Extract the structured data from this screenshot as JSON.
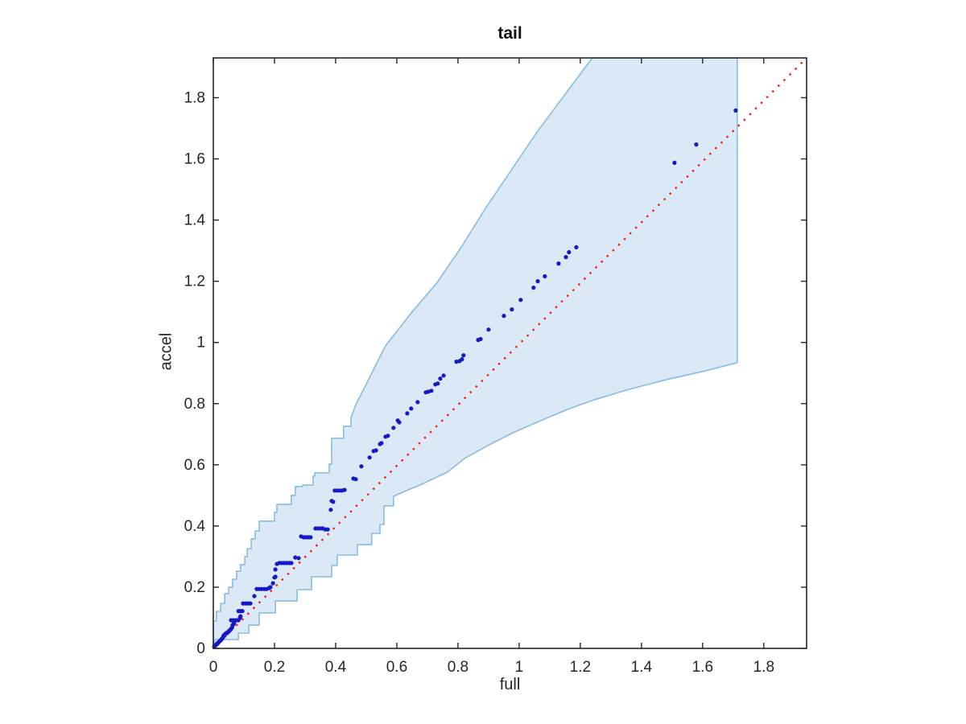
{
  "chart_data": {
    "type": "scatter",
    "title": "tail",
    "xlabel": "full",
    "ylabel": "accel",
    "xlim": [
      0,
      1.94
    ],
    "ylim": [
      0,
      1.93
    ],
    "grid": false,
    "legend": null,
    "xticks": {
      "values": [
        0,
        0.2,
        0.4,
        0.6,
        0.8,
        1,
        1.2,
        1.4,
        1.6,
        1.8
      ],
      "labels": [
        "0",
        "0.2",
        "0.4",
        "0.6",
        "0.8",
        "1",
        "1.2",
        "1.4",
        "1.6",
        "1.8"
      ]
    },
    "yticks": {
      "values": [
        0,
        0.2,
        0.4,
        0.6,
        0.8,
        1,
        1.2,
        1.4,
        1.6,
        1.8
      ],
      "labels": [
        "0",
        "0.2",
        "0.4",
        "0.6",
        "0.8",
        "1",
        "1.2",
        "1.4",
        "1.6",
        "1.8"
      ]
    },
    "colors": {
      "axis": "#262626",
      "marker": "#1519c6",
      "refline": "#f91a0c",
      "band_fill": "#dbe9f6",
      "band_edge": "#86bde0",
      "title": "#111111"
    },
    "marker": {
      "shape": "circle",
      "radius": 2.6
    },
    "refline": {
      "style": "dotted",
      "from": [
        0,
        0
      ],
      "to": [
        1.94,
        1.93
      ]
    },
    "band_polygon": [
      [
        0,
        0.005
      ],
      [
        0,
        0.09
      ],
      [
        0.01,
        0.09
      ],
      [
        0.01,
        0.121
      ],
      [
        0.024,
        0.121
      ],
      [
        0.024,
        0.147
      ],
      [
        0.037,
        0.147
      ],
      [
        0.037,
        0.179
      ],
      [
        0.05,
        0.179
      ],
      [
        0.05,
        0.2
      ],
      [
        0.063,
        0.2
      ],
      [
        0.063,
        0.226
      ],
      [
        0.076,
        0.226
      ],
      [
        0.076,
        0.253
      ],
      [
        0.089,
        0.253
      ],
      [
        0.089,
        0.274
      ],
      [
        0.103,
        0.274
      ],
      [
        0.103,
        0.3
      ],
      [
        0.111,
        0.3
      ],
      [
        0.111,
        0.326
      ],
      [
        0.124,
        0.326
      ],
      [
        0.124,
        0.358
      ],
      [
        0.137,
        0.358
      ],
      [
        0.137,
        0.384
      ],
      [
        0.15,
        0.384
      ],
      [
        0.15,
        0.416
      ],
      [
        0.2,
        0.416
      ],
      [
        0.2,
        0.445
      ],
      [
        0.208,
        0.445
      ],
      [
        0.208,
        0.471
      ],
      [
        0.255,
        0.471
      ],
      [
        0.255,
        0.5
      ],
      [
        0.268,
        0.5
      ],
      [
        0.268,
        0.529
      ],
      [
        0.292,
        0.529
      ],
      [
        0.292,
        0.534
      ],
      [
        0.326,
        0.534
      ],
      [
        0.326,
        0.563
      ],
      [
        0.332,
        0.563
      ],
      [
        0.332,
        0.574
      ],
      [
        0.379,
        0.574
      ],
      [
        0.379,
        0.603
      ],
      [
        0.387,
        0.603
      ],
      [
        0.387,
        0.687
      ],
      [
        0.426,
        0.687
      ],
      [
        0.426,
        0.726
      ],
      [
        0.45,
        0.726
      ],
      [
        0.45,
        0.753
      ],
      [
        0.466,
        0.797
      ],
      [
        0.484,
        0.832
      ],
      [
        0.563,
        0.989
      ],
      [
        0.65,
        1.1
      ],
      [
        0.729,
        1.192
      ],
      [
        0.81,
        1.31
      ],
      [
        0.889,
        1.437
      ],
      [
        1.06,
        1.69
      ],
      [
        1.239,
        1.93
      ],
      [
        1.713,
        1.93
      ],
      [
        1.713,
        0.934
      ],
      [
        1.6,
        0.905
      ],
      [
        1.484,
        0.879
      ],
      [
        1.36,
        0.847
      ],
      [
        1.247,
        0.813
      ],
      [
        1.16,
        0.782
      ],
      [
        1.071,
        0.745
      ],
      [
        0.98,
        0.705
      ],
      [
        0.897,
        0.663
      ],
      [
        0.82,
        0.62
      ],
      [
        0.766,
        0.576
      ],
      [
        0.72,
        0.555
      ],
      [
        0.676,
        0.534
      ],
      [
        0.63,
        0.515
      ],
      [
        0.589,
        0.497
      ],
      [
        0.589,
        0.466
      ],
      [
        0.558,
        0.466
      ],
      [
        0.558,
        0.405
      ],
      [
        0.545,
        0.405
      ],
      [
        0.545,
        0.376
      ],
      [
        0.518,
        0.376
      ],
      [
        0.518,
        0.339
      ],
      [
        0.471,
        0.339
      ],
      [
        0.471,
        0.305
      ],
      [
        0.405,
        0.305
      ],
      [
        0.405,
        0.271
      ],
      [
        0.387,
        0.271
      ],
      [
        0.387,
        0.234
      ],
      [
        0.321,
        0.234
      ],
      [
        0.321,
        0.192
      ],
      [
        0.274,
        0.192
      ],
      [
        0.274,
        0.155
      ],
      [
        0.203,
        0.155
      ],
      [
        0.203,
        0.116
      ],
      [
        0.15,
        0.116
      ],
      [
        0.15,
        0.076
      ],
      [
        0.116,
        0.076
      ],
      [
        0.116,
        0.05
      ],
      [
        0.082,
        0.05
      ],
      [
        0.082,
        0.029
      ],
      [
        0.005,
        0.029
      ],
      [
        0.005,
        0.008
      ]
    ],
    "points": [
      [
        0.003,
        0.005
      ],
      [
        0.005,
        0.008
      ],
      [
        0.008,
        0.011
      ],
      [
        0.011,
        0.013
      ],
      [
        0.013,
        0.016
      ],
      [
        0.016,
        0.018
      ],
      [
        0.018,
        0.021
      ],
      [
        0.021,
        0.024
      ],
      [
        0.024,
        0.026
      ],
      [
        0.026,
        0.029
      ],
      [
        0.029,
        0.032
      ],
      [
        0.032,
        0.037
      ],
      [
        0.034,
        0.042
      ],
      [
        0.037,
        0.045
      ],
      [
        0.039,
        0.047
      ],
      [
        0.042,
        0.05
      ],
      [
        0.045,
        0.05
      ],
      [
        0.047,
        0.053
      ],
      [
        0.05,
        0.055
      ],
      [
        0.053,
        0.058
      ],
      [
        0.055,
        0.061
      ],
      [
        0.058,
        0.063
      ],
      [
        0.061,
        0.068
      ],
      [
        0.063,
        0.076
      ],
      [
        0.066,
        0.079
      ],
      [
        0.068,
        0.084
      ],
      [
        0.058,
        0.092
      ],
      [
        0.066,
        0.092
      ],
      [
        0.074,
        0.092
      ],
      [
        0.082,
        0.092
      ],
      [
        0.087,
        0.1
      ],
      [
        0.089,
        0.105
      ],
      [
        0.082,
        0.122
      ],
      [
        0.089,
        0.122
      ],
      [
        0.095,
        0.122
      ],
      [
        0.097,
        0.147
      ],
      [
        0.105,
        0.147
      ],
      [
        0.113,
        0.147
      ],
      [
        0.121,
        0.147
      ],
      [
        0.134,
        0.171
      ],
      [
        0.142,
        0.194
      ],
      [
        0.15,
        0.194
      ],
      [
        0.158,
        0.194
      ],
      [
        0.166,
        0.194
      ],
      [
        0.174,
        0.194
      ],
      [
        0.182,
        0.197
      ],
      [
        0.187,
        0.2
      ],
      [
        0.195,
        0.213
      ],
      [
        0.2,
        0.232
      ],
      [
        0.203,
        0.234
      ],
      [
        0.203,
        0.258
      ],
      [
        0.208,
        0.276
      ],
      [
        0.216,
        0.279
      ],
      [
        0.224,
        0.279
      ],
      [
        0.232,
        0.279
      ],
      [
        0.24,
        0.279
      ],
      [
        0.248,
        0.279
      ],
      [
        0.255,
        0.279
      ],
      [
        0.268,
        0.297
      ],
      [
        0.279,
        0.295
      ],
      [
        0.287,
        0.366
      ],
      [
        0.295,
        0.363
      ],
      [
        0.303,
        0.363
      ],
      [
        0.311,
        0.363
      ],
      [
        0.318,
        0.363
      ],
      [
        0.334,
        0.392
      ],
      [
        0.342,
        0.392
      ],
      [
        0.35,
        0.392
      ],
      [
        0.358,
        0.392
      ],
      [
        0.366,
        0.389
      ],
      [
        0.374,
        0.389
      ],
      [
        0.384,
        0.453
      ],
      [
        0.387,
        0.482
      ],
      [
        0.392,
        0.479
      ],
      [
        0.397,
        0.516
      ],
      [
        0.405,
        0.516
      ],
      [
        0.413,
        0.516
      ],
      [
        0.421,
        0.516
      ],
      [
        0.429,
        0.518
      ],
      [
        0.458,
        0.555
      ],
      [
        0.466,
        0.553
      ],
      [
        0.484,
        0.595
      ],
      [
        0.511,
        0.624
      ],
      [
        0.524,
        0.645
      ],
      [
        0.532,
        0.647
      ],
      [
        0.545,
        0.668
      ],
      [
        0.55,
        0.671
      ],
      [
        0.563,
        0.692
      ],
      [
        0.571,
        0.695
      ],
      [
        0.589,
        0.721
      ],
      [
        0.603,
        0.745
      ],
      [
        0.608,
        0.739
      ],
      [
        0.634,
        0.768
      ],
      [
        0.647,
        0.784
      ],
      [
        0.668,
        0.805
      ],
      [
        0.695,
        0.837
      ],
      [
        0.703,
        0.839
      ],
      [
        0.713,
        0.842
      ],
      [
        0.726,
        0.863
      ],
      [
        0.734,
        0.866
      ],
      [
        0.742,
        0.882
      ],
      [
        0.753,
        0.892
      ],
      [
        0.795,
        0.937
      ],
      [
        0.805,
        0.939
      ],
      [
        0.813,
        0.945
      ],
      [
        0.818,
        0.958
      ],
      [
        0.866,
        1.008
      ],
      [
        0.874,
        1.011
      ],
      [
        0.9,
        1.042
      ],
      [
        0.95,
        1.087
      ],
      [
        0.976,
        1.108
      ],
      [
        1.005,
        1.139
      ],
      [
        1.047,
        1.179
      ],
      [
        1.061,
        1.2
      ],
      [
        1.084,
        1.216
      ],
      [
        1.129,
        1.258
      ],
      [
        1.153,
        1.279
      ],
      [
        1.163,
        1.295
      ],
      [
        1.187,
        1.311
      ],
      [
        1.508,
        1.587
      ],
      [
        1.579,
        1.647
      ],
      [
        1.708,
        1.758
      ]
    ]
  }
}
